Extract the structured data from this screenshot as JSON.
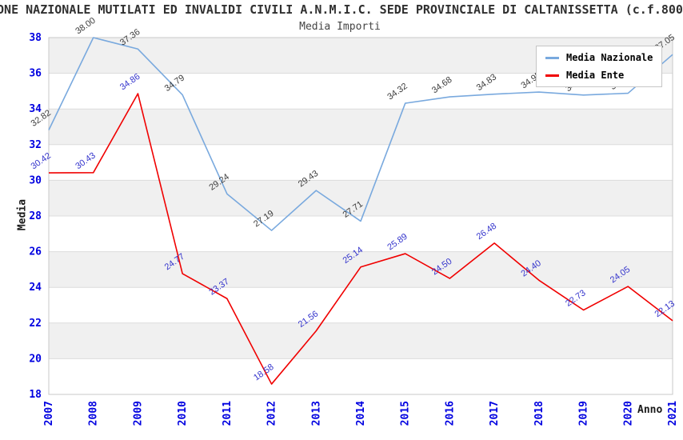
{
  "chart_data": {
    "type": "line",
    "title": "ONE NAZIONALE MUTILATI ED INVALIDI CIVILI A.N.M.I.C. SEDE PROVINCIALE DI CALTANISSETTA (c.f.800",
    "subtitle": "Media Importi",
    "xlabel": "Anno",
    "ylabel": "Media",
    "ylim": [
      18,
      38
    ],
    "ytick_step": 2,
    "yticks": [
      18,
      20,
      22,
      24,
      26,
      28,
      30,
      32,
      34,
      36,
      38
    ],
    "grid": "horizontal gridlines with alternating gray bands every 2 units",
    "legend_position": "top-right",
    "categories": [
      "2007",
      "2008",
      "2009",
      "2010",
      "2011",
      "2012",
      "2013",
      "2014",
      "2015",
      "2016",
      "2017",
      "2018",
      "2019",
      "2020",
      "2021"
    ],
    "series": [
      {
        "name": "Media Nazionale",
        "color": "#79A9DE",
        "label_color": "#3c3c3c",
        "values": [
          32.82,
          38.0,
          37.36,
          34.79,
          29.24,
          27.19,
          29.43,
          27.71,
          34.32,
          34.68,
          34.83,
          34.95,
          34.78,
          34.88,
          37.05
        ]
      },
      {
        "name": "Media Ente",
        "color": "#F00000",
        "label_color": "#3333CC",
        "values": [
          30.42,
          30.43,
          34.86,
          24.77,
          23.37,
          18.58,
          21.56,
          25.14,
          25.89,
          24.5,
          26.48,
          24.4,
          22.73,
          24.05,
          22.13
        ]
      }
    ],
    "colors": {
      "band": "#f0f0f0",
      "grid": "#dcdcdc",
      "border": "#c8c8c8",
      "tick_label": "#0000E0"
    }
  }
}
